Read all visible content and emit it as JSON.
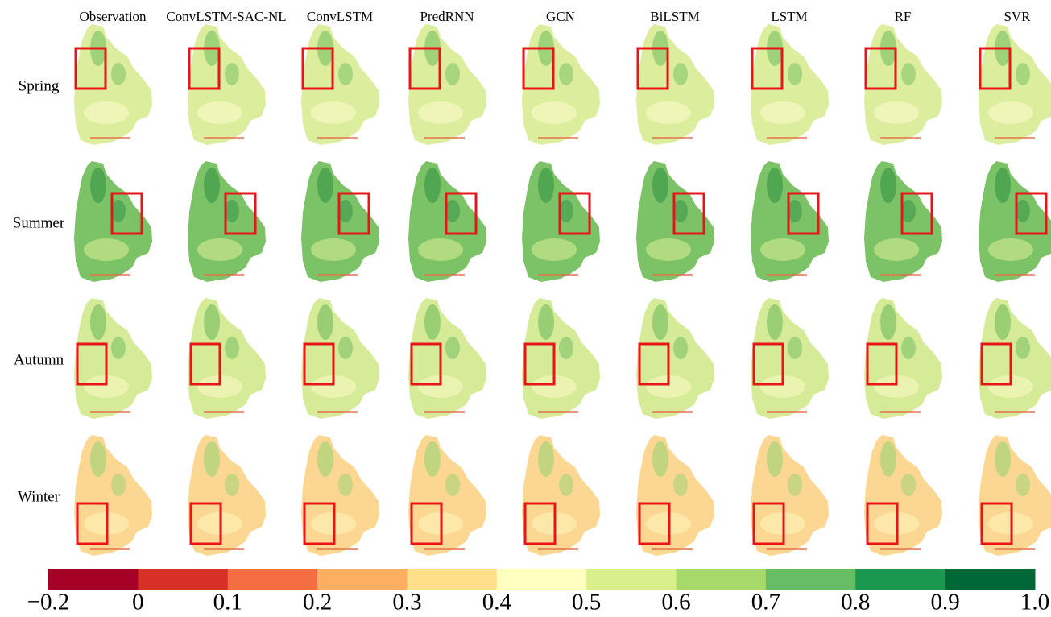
{
  "columns": [
    "Observation",
    "ConvLSTM-SAC-NL",
    "ConvLSTM",
    "PredRNN",
    "GCN",
    "BiLSTM",
    "LSTM",
    "RF",
    "SVR"
  ],
  "rows": [
    "Spring",
    "Summer",
    "Autumn",
    "Winter"
  ],
  "colorbar": {
    "ticks": [
      "−0.2",
      "0",
      "0.1",
      "0.2",
      "0.3",
      "0.4",
      "0.5",
      "0.6",
      "0.7",
      "0.8",
      "0.9",
      "1.0"
    ],
    "colors": [
      "#a50026",
      "#d73027",
      "#f46d43",
      "#fdae61",
      "#fee08b",
      "#ffffbf",
      "#d9ef8b",
      "#a6d96a",
      "#66bd63",
      "#1a9850",
      "#006837"
    ]
  }
}
